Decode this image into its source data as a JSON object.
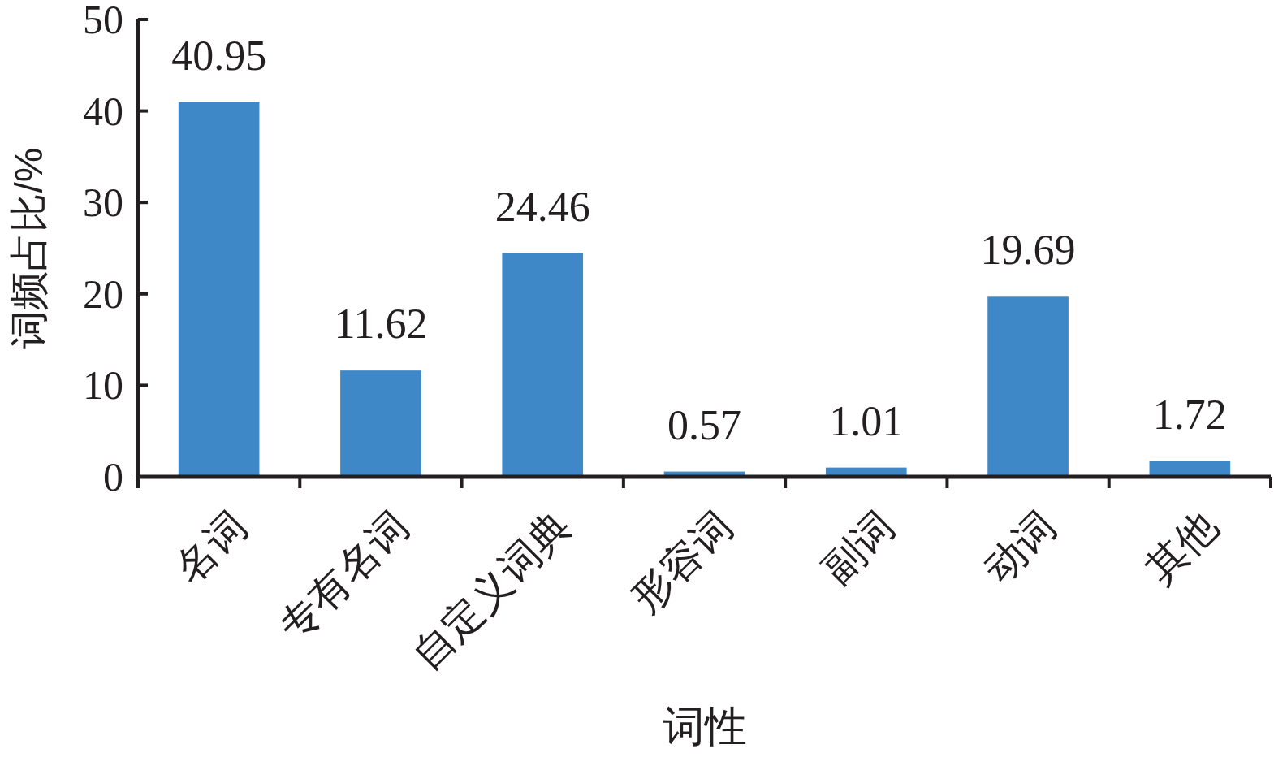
{
  "chart_data": {
    "type": "bar",
    "xlabel": "词性",
    "ylabel": "词频占比/%",
    "categories": [
      "名词",
      "专有名词",
      "自定义词典",
      "形容词",
      "副词",
      "动词",
      "其他"
    ],
    "values": [
      40.95,
      11.62,
      24.46,
      0.57,
      1.01,
      19.69,
      1.72
    ],
    "color": "#3f88c8",
    "ylim": [
      0,
      50
    ],
    "yticks": [
      0,
      10,
      20,
      30,
      40,
      50
    ],
    "data_labels": true
  }
}
